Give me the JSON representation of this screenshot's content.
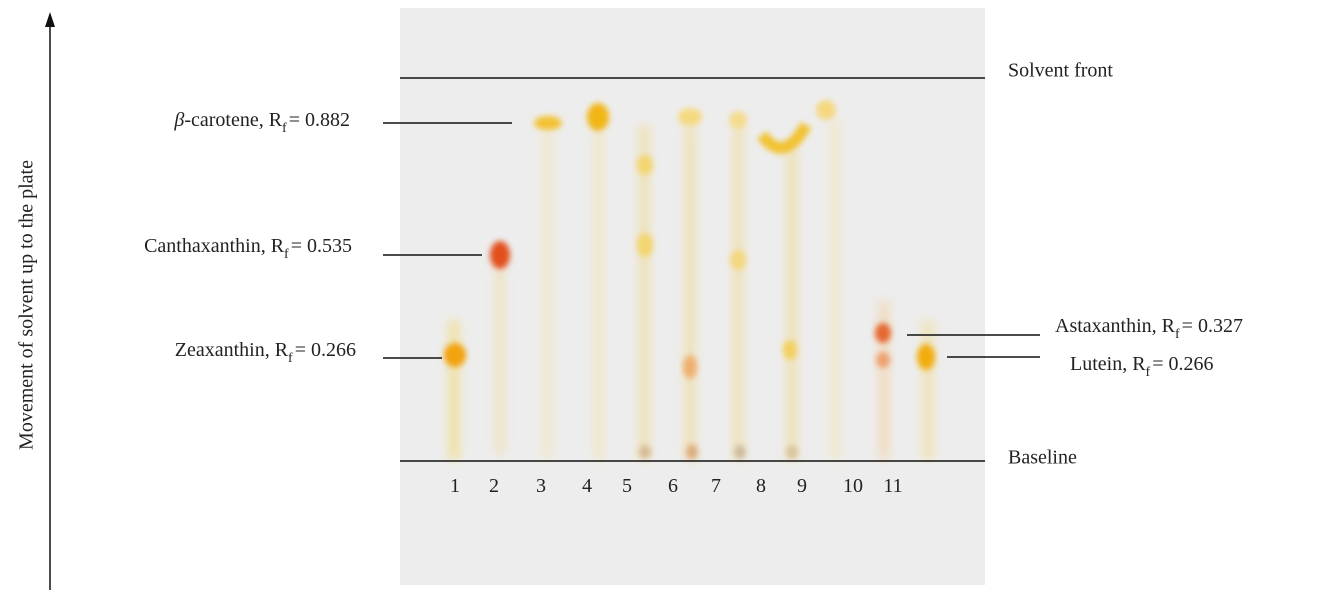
{
  "axis_label": "Movement of solvent up to the plate",
  "solvent_front": "Solvent front",
  "baseline": "Baseline",
  "lanes": [
    1,
    2,
    3,
    4,
    5,
    6,
    7,
    8,
    9,
    10,
    11
  ],
  "labels": [
    {
      "italic": "β",
      "name": "-carotene, R",
      "sub": "f",
      "value": "= 0.882"
    },
    {
      "name": "Canthaxanthin, R",
      "sub": "f",
      "value": "= 0.535"
    },
    {
      "name": "Zeaxanthin, R",
      "sub": "f",
      "value": "= 0.266"
    },
    {
      "name": "Astaxanthin, R",
      "sub": "f",
      "value": "= 0.327"
    },
    {
      "name": "Lutein, R",
      "sub": "f",
      "value": "= 0.266"
    }
  ]
}
